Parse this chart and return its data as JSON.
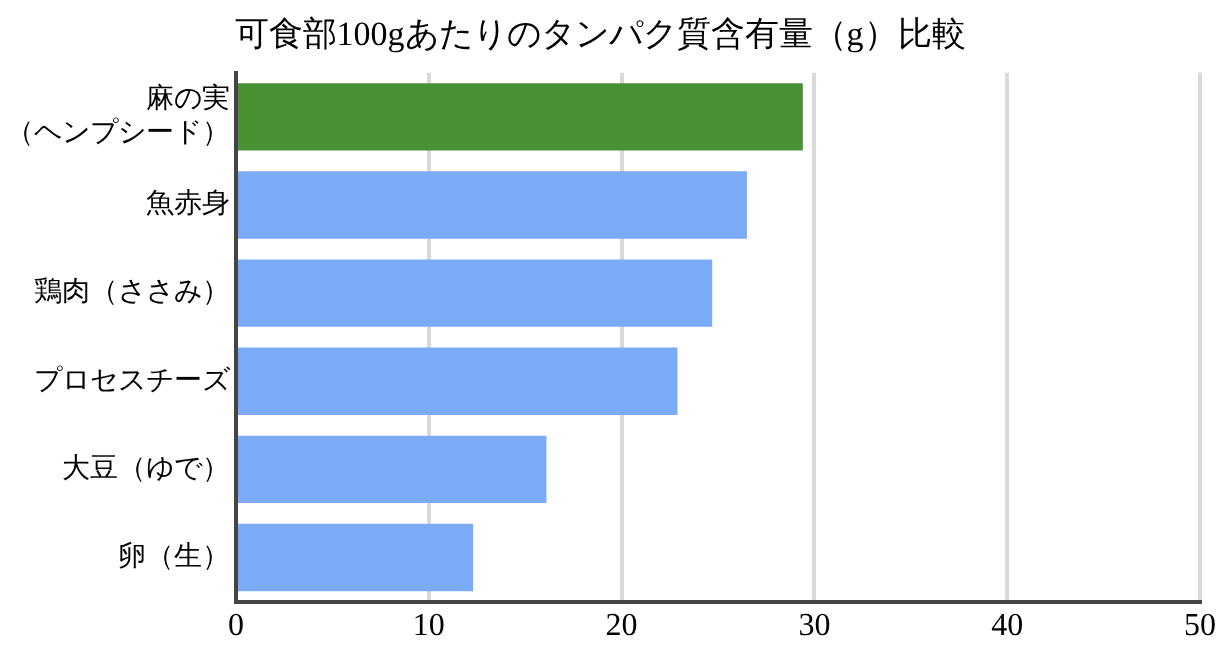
{
  "chart_data": {
    "type": "bar",
    "orientation": "horizontal",
    "title": "可食部100gあたりのタンパク質含有量（g）比較",
    "categories": [
      "麻の実（ヘンプシード）",
      "魚赤身",
      "鶏肉（ささみ）",
      "プロセスチーズ",
      "大豆（ゆで）",
      "卵（生）"
    ],
    "values": [
      29.4,
      26.5,
      24.7,
      22.9,
      16.1,
      12.3
    ],
    "colors": [
      "#4a9134",
      "#7baaf7",
      "#7baaf7",
      "#7baaf7",
      "#7baaf7",
      "#7baaf7"
    ],
    "xlim": [
      0,
      50
    ],
    "xticks": [
      0,
      10,
      20,
      30,
      40,
      50
    ],
    "grid": "x",
    "legend": false
  }
}
